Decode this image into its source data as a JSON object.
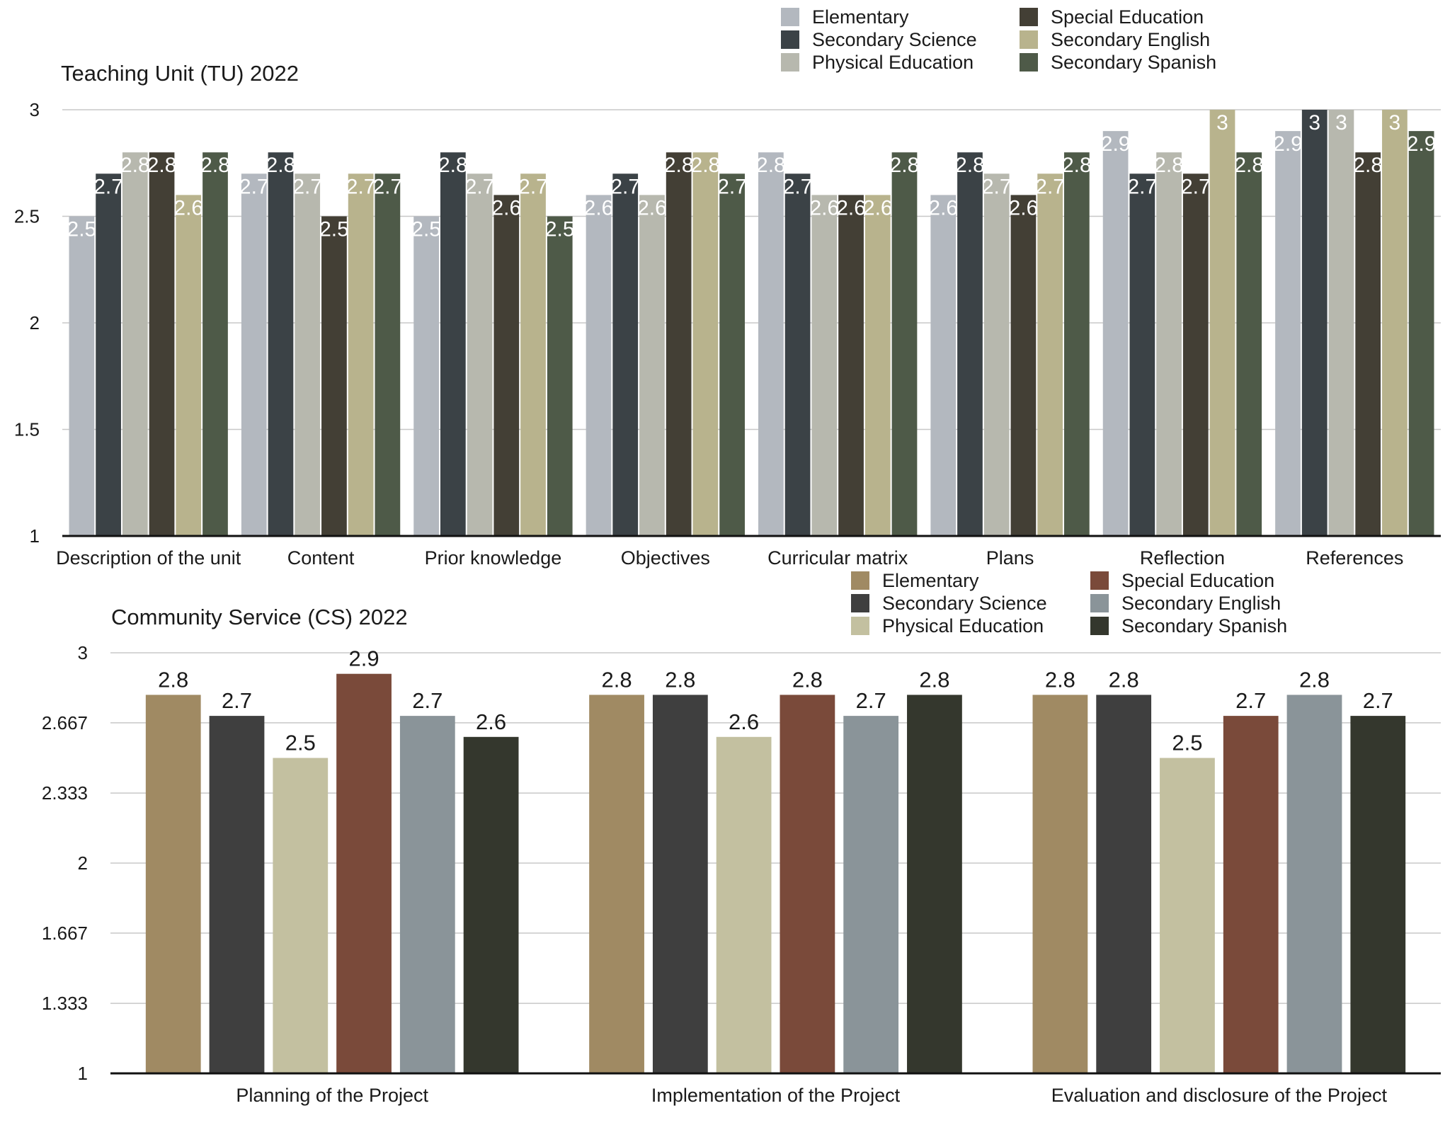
{
  "chart_data": [
    {
      "type": "bar",
      "title": "Teaching Unit (TU) 2022",
      "categories": [
        "Description of the unit",
        "Content",
        "Prior knowledge",
        "Objectives",
        "Curricular matrix",
        "Plans",
        "Reflection",
        "References"
      ],
      "ylim": [
        1,
        3
      ],
      "yticks": [
        "1",
        "1.5",
        "2",
        "2.5",
        "3"
      ],
      "ytick_values": [
        1,
        1.5,
        2,
        2.5,
        3
      ],
      "grid": true,
      "legend_position": "top-right",
      "series": [
        {
          "name": "Elementary",
          "color": "#b3b8bf",
          "values": [
            2.5,
            2.7,
            2.5,
            2.6,
            2.8,
            2.6,
            2.9,
            2.9
          ]
        },
        {
          "name": "Secondary Science",
          "color": "#3b4246",
          "values": [
            2.7,
            2.8,
            2.8,
            2.7,
            2.7,
            2.8,
            2.7,
            3
          ]
        },
        {
          "name": "Physical Education",
          "color": "#b7b8ae",
          "values": [
            2.8,
            2.7,
            2.7,
            2.6,
            2.6,
            2.7,
            2.8,
            3
          ]
        },
        {
          "name": "Special Education",
          "color": "#433f35",
          "values": [
            2.8,
            2.5,
            2.6,
            2.8,
            2.6,
            2.6,
            2.7,
            2.8
          ]
        },
        {
          "name": "Secondary English",
          "color": "#b8b38d",
          "values": [
            2.6,
            2.7,
            2.7,
            2.8,
            2.6,
            2.7,
            3,
            3
          ]
        },
        {
          "name": "Secondary Spanish",
          "color": "#4e5a48",
          "values": [
            2.8,
            2.7,
            2.5,
            2.7,
            2.8,
            2.8,
            2.8,
            2.9
          ]
        }
      ]
    },
    {
      "type": "bar",
      "title": "Community Service (CS) 2022",
      "categories": [
        "Planning of the Project",
        "Implementation of the Project",
        "Evaluation and disclosure of the Project"
      ],
      "ylim": [
        1,
        3
      ],
      "yticks": [
        "1",
        "1.333",
        "1.667",
        "2",
        "2.333",
        "2.667",
        "3"
      ],
      "ytick_values": [
        1,
        1.333,
        1.667,
        2,
        2.333,
        2.667,
        3
      ],
      "grid": true,
      "legend_position": "top-right",
      "series": [
        {
          "name": "Elementary",
          "color": "#a08a63",
          "values": [
            2.8,
            2.8,
            2.8
          ]
        },
        {
          "name": "Secondary Science",
          "color": "#3f3f3f",
          "values": [
            2.7,
            2.8,
            2.8
          ]
        },
        {
          "name": "Physical Education",
          "color": "#c3c0a0",
          "values": [
            2.5,
            2.6,
            2.5
          ]
        },
        {
          "name": "Special Education",
          "color": "#7a4a3a",
          "values": [
            2.9,
            2.8,
            2.7
          ]
        },
        {
          "name": "Secondary English",
          "color": "#8a9499",
          "values": [
            2.7,
            2.7,
            2.8
          ]
        },
        {
          "name": "Secondary Spanish",
          "color": "#34372d",
          "values": [
            2.6,
            2.8,
            2.7
          ]
        }
      ]
    }
  ]
}
